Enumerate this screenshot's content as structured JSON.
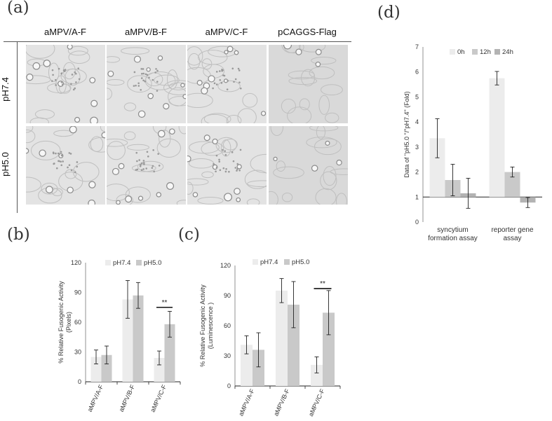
{
  "panel_a": {
    "letter": "(a)",
    "columns": [
      "aMPV/A-F",
      "aMPV/B-F",
      "aMPV/C-F",
      "pCAGGS-Flag"
    ],
    "rows": [
      "pH7.4",
      "pH5.0"
    ]
  },
  "panel_b": {
    "letter": "(b)"
  },
  "panel_c": {
    "letter": "(c)"
  },
  "panel_d": {
    "letter": "(d)"
  },
  "colors": {
    "light": "#ececec",
    "dark": "#c9c9c9",
    "darker": "#b3b3b3",
    "axis": "#333333",
    "grid": "#d9d9d9"
  },
  "chart_data": [
    {
      "id": "b",
      "type": "bar",
      "categories": [
        "aMPV/A-F",
        "aMPV/B-F",
        "aMPV/C-F"
      ],
      "series": [
        {
          "name": "pH7.4",
          "values": [
            25,
            83,
            24
          ],
          "errors": [
            7,
            19,
            7
          ]
        },
        {
          "name": "pH5.0",
          "values": [
            27,
            87,
            58
          ],
          "errors": [
            9,
            13,
            13
          ]
        }
      ],
      "ylabel": "% Relative Fusogenic Activity\n(Pixels)",
      "ylim": [
        0,
        120
      ],
      "yticks": [
        0,
        30,
        60,
        90,
        120
      ],
      "annotation": "**",
      "legend": "top"
    },
    {
      "id": "c",
      "type": "bar",
      "categories": [
        "aMPV/A-F",
        "aMPV/B-F",
        "aMPV/C-F"
      ],
      "series": [
        {
          "name": "pH7.4",
          "values": [
            41,
            95,
            21
          ],
          "errors": [
            9,
            12,
            8
          ]
        },
        {
          "name": "pH5.0",
          "values": [
            36,
            81,
            73
          ],
          "errors": [
            17,
            23,
            22
          ]
        }
      ],
      "ylabel": "% Relative Fusogenic Activity\n(Luminescence )",
      "ylim": [
        0,
        120
      ],
      "yticks": [
        0,
        30,
        60,
        90,
        120
      ],
      "annotation": "**",
      "legend": "top"
    },
    {
      "id": "d",
      "type": "bar",
      "categories": [
        "syncytium\nformation assay",
        "reporter gene\nassay"
      ],
      "series": [
        {
          "name": "0h",
          "values": [
            3.35,
            5.75
          ],
          "errors": [
            0.78,
            0.27
          ]
        },
        {
          "name": "12h",
          "values": [
            1.68,
            2.0
          ],
          "errors": [
            0.63,
            0.2
          ]
        },
        {
          "name": "24h",
          "values": [
            1.15,
            0.78
          ],
          "errors": [
            0.6,
            0.2
          ]
        }
      ],
      "ylabel": "Data of \"pH5.0 \"/\"pH7.4\" (Fold)",
      "ylim": [
        0,
        7
      ],
      "yticks": [
        0,
        1,
        2,
        3,
        4,
        5,
        6,
        7
      ],
      "baseline": 1,
      "legend": "top"
    }
  ]
}
